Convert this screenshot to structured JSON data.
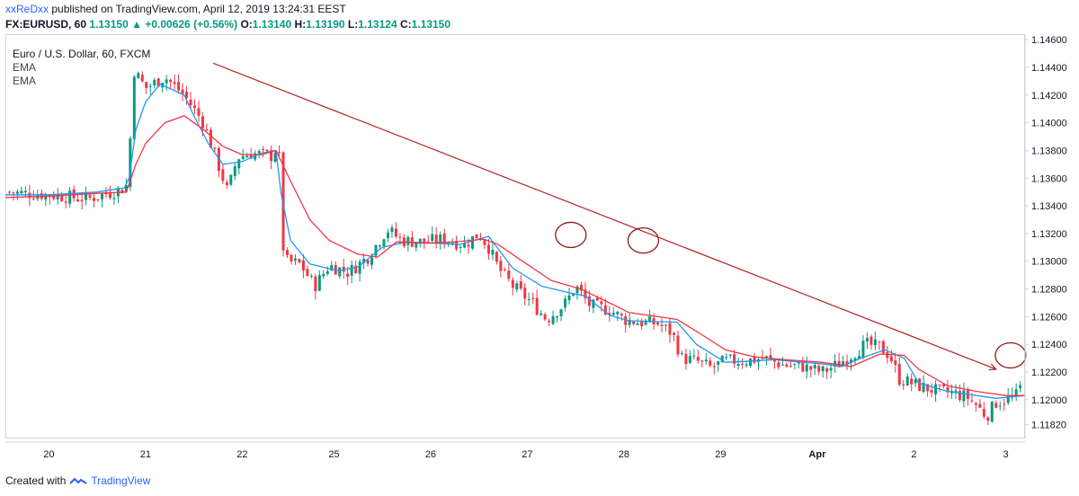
{
  "header": {
    "author": "xxReDxx",
    "published_text": "published on TradingView.com, April 12, 2019 13:24:31 EEST",
    "symbol": "FX:EURUSD, 60",
    "last": "1.13150",
    "change": "+0.00626 (+0.56%)",
    "o_label": "O:",
    "o": "1.13140",
    "h_label": "H:",
    "h": "1.13190",
    "l_label": "L:",
    "l": "1.13124",
    "c_label": "C:",
    "c": "1.13150"
  },
  "legend": {
    "title": "Euro / U.S. Dollar, 60, FXCM",
    "ind1": "EMA",
    "ind2": "EMA"
  },
  "footer": {
    "created_with": "Created with",
    "brand": "TradingView"
  },
  "chart_data": {
    "type": "line",
    "title": "Euro / U.S. Dollar, 60, FXCM",
    "x_ticks": [
      "20",
      "21",
      "22",
      "25",
      "26",
      "27",
      "28",
      "29",
      "Apr",
      "2",
      "3"
    ],
    "y_ticks": [
      "1.14600",
      "1.14400",
      "1.14200",
      "1.14000",
      "1.13800",
      "1.13600",
      "1.13400",
      "1.13200",
      "1.13000",
      "1.12800",
      "1.12600",
      "1.12400",
      "1.12200",
      "1.12000",
      "1.11820"
    ],
    "ylim": [
      1.1172,
      1.1464
    ],
    "x_domain": [
      19.55,
      30.1
    ],
    "grid": false,
    "colors": {
      "price": "#787b86",
      "up": "#089981",
      "down": "#f23645",
      "ema_fast": "#f23645",
      "ema_slow": "#2196f3",
      "trendline": "#b22222",
      "circle": "#8b1a1a",
      "axis_text": "#131722"
    },
    "series": [
      {
        "name": "EMA",
        "points": [
          [
            19.55,
            1.1348
          ],
          [
            20.0,
            1.1348
          ],
          [
            20.5,
            1.135
          ],
          [
            20.78,
            1.1353
          ],
          [
            20.83,
            1.136
          ],
          [
            20.9,
            1.1395
          ],
          [
            21.0,
            1.1415
          ],
          [
            21.15,
            1.1428
          ],
          [
            21.4,
            1.142
          ],
          [
            21.5,
            1.1405
          ],
          [
            21.65,
            1.1385
          ],
          [
            21.8,
            1.137
          ],
          [
            22.0,
            1.1372
          ],
          [
            22.2,
            1.1378
          ],
          [
            22.35,
            1.138
          ],
          [
            22.4,
            1.135
          ],
          [
            22.5,
            1.1315
          ],
          [
            22.7,
            1.1298
          ],
          [
            23.0,
            1.1293
          ],
          [
            23.2,
            1.1296
          ],
          [
            23.45,
            1.131
          ],
          [
            23.7,
            1.1314
          ],
          [
            24.0,
            1.1313
          ],
          [
            24.25,
            1.1312
          ],
          [
            24.55,
            1.1318
          ],
          [
            24.8,
            1.1295
          ],
          [
            25.1,
            1.1282
          ],
          [
            25.4,
            1.1277
          ],
          [
            25.55,
            1.1275
          ],
          [
            25.8,
            1.1261
          ],
          [
            26.0,
            1.1257
          ],
          [
            26.5,
            1.1256
          ],
          [
            26.7,
            1.124
          ],
          [
            27.0,
            1.1227
          ],
          [
            27.3,
            1.1228
          ],
          [
            27.5,
            1.1229
          ],
          [
            27.8,
            1.1227
          ],
          [
            28.0,
            1.1226
          ],
          [
            28.2,
            1.1224
          ],
          [
            28.4,
            1.123
          ],
          [
            28.65,
            1.1236
          ],
          [
            28.85,
            1.123
          ],
          [
            29.0,
            1.1212
          ],
          [
            29.3,
            1.1206
          ],
          [
            29.6,
            1.1203
          ],
          [
            29.8,
            1.1201
          ],
          [
            30.1,
            1.1203
          ]
        ]
      },
      {
        "name": "EMA",
        "points": [
          [
            19.55,
            1.1346
          ],
          [
            20.0,
            1.1347
          ],
          [
            20.5,
            1.1349
          ],
          [
            20.8,
            1.135
          ],
          [
            20.9,
            1.137
          ],
          [
            21.0,
            1.1385
          ],
          [
            21.2,
            1.14
          ],
          [
            21.4,
            1.1405
          ],
          [
            21.6,
            1.1395
          ],
          [
            21.8,
            1.1383
          ],
          [
            22.0,
            1.1377
          ],
          [
            22.2,
            1.1377
          ],
          [
            22.35,
            1.138
          ],
          [
            22.5,
            1.1358
          ],
          [
            22.7,
            1.133
          ],
          [
            22.9,
            1.1315
          ],
          [
            23.2,
            1.1305
          ],
          [
            23.4,
            1.1303
          ],
          [
            23.6,
            1.1314
          ],
          [
            23.9,
            1.1313
          ],
          [
            24.2,
            1.1314
          ],
          [
            24.5,
            1.1316
          ],
          [
            24.65,
            1.1312
          ],
          [
            24.9,
            1.13
          ],
          [
            25.2,
            1.1286
          ],
          [
            25.5,
            1.128
          ],
          [
            25.8,
            1.127
          ],
          [
            26.0,
            1.1263
          ],
          [
            26.5,
            1.1258
          ],
          [
            26.8,
            1.1245
          ],
          [
            27.0,
            1.1236
          ],
          [
            27.3,
            1.1231
          ],
          [
            27.6,
            1.1229
          ],
          [
            28.0,
            1.1227
          ],
          [
            28.3,
            1.1224
          ],
          [
            28.6,
            1.1233
          ],
          [
            28.85,
            1.1232
          ],
          [
            29.0,
            1.1222
          ],
          [
            29.3,
            1.121
          ],
          [
            29.6,
            1.1206
          ],
          [
            29.9,
            1.1203
          ],
          [
            30.1,
            1.1203
          ]
        ]
      }
    ],
    "price_path": [
      [
        19.55,
        1.135
      ],
      [
        20.0,
        1.1348
      ],
      [
        20.4,
        1.1345
      ],
      [
        20.75,
        1.1352
      ],
      [
        20.83,
        1.1356
      ],
      [
        20.86,
        1.144
      ],
      [
        21.0,
        1.1425
      ],
      [
        21.2,
        1.1433
      ],
      [
        21.4,
        1.142
      ],
      [
        21.6,
        1.14
      ],
      [
        21.75,
        1.137
      ],
      [
        21.85,
        1.135
      ],
      [
        21.95,
        1.1375
      ],
      [
        22.1,
        1.1378
      ],
      [
        22.3,
        1.1376
      ],
      [
        22.38,
        1.1385
      ],
      [
        22.4,
        1.132
      ],
      [
        22.45,
        1.13
      ],
      [
        22.6,
        1.1298
      ],
      [
        22.75,
        1.1282
      ],
      [
        22.9,
        1.1297
      ],
      [
        23.1,
        1.1292
      ],
      [
        23.3,
        1.1303
      ],
      [
        23.5,
        1.1323
      ],
      [
        23.65,
        1.1315
      ],
      [
        23.85,
        1.1314
      ],
      [
        24.1,
        1.1316
      ],
      [
        24.3,
        1.1312
      ],
      [
        24.45,
        1.132
      ],
      [
        24.55,
        1.131
      ],
      [
        24.65,
        1.1295
      ],
      [
        24.8,
        1.1282
      ],
      [
        25.0,
        1.127
      ],
      [
        25.15,
        1.1258
      ],
      [
        25.35,
        1.127
      ],
      [
        25.45,
        1.1282
      ],
      [
        25.6,
        1.1268
      ],
      [
        25.8,
        1.1265
      ],
      [
        25.95,
        1.1258
      ],
      [
        26.1,
        1.1256
      ],
      [
        26.3,
        1.1255
      ],
      [
        26.45,
        1.1248
      ],
      [
        26.55,
        1.123
      ],
      [
        26.7,
        1.1228
      ],
      [
        26.85,
        1.1223
      ],
      [
        27.0,
        1.1228
      ],
      [
        27.2,
        1.1228
      ],
      [
        27.4,
        1.123
      ],
      [
        27.6,
        1.1225
      ],
      [
        27.8,
        1.1224
      ],
      [
        28.0,
        1.122
      ],
      [
        28.15,
        1.1225
      ],
      [
        28.3,
        1.1232
      ],
      [
        28.45,
        1.124
      ],
      [
        28.6,
        1.1238
      ],
      [
        28.7,
        1.1232
      ],
      [
        28.8,
        1.1215
      ],
      [
        29.0,
        1.121
      ],
      [
        29.2,
        1.1206
      ],
      [
        29.35,
        1.1205
      ],
      [
        29.5,
        1.1202
      ],
      [
        29.6,
        1.1196
      ],
      [
        29.7,
        1.1188
      ],
      [
        29.8,
        1.1198
      ],
      [
        30.0,
        1.1202
      ],
      [
        30.1,
        1.1215
      ]
    ],
    "trendline": [
      [
        21.7,
        1.1443
      ],
      [
        29.8,
        1.1222
      ]
    ],
    "annotations": [
      {
        "type": "ellipse",
        "x": 25.4,
        "y": 1.1319
      },
      {
        "type": "ellipse",
        "x": 26.15,
        "y": 1.1315
      },
      {
        "type": "ellipse",
        "x": 29.95,
        "y": 1.1232
      }
    ]
  }
}
